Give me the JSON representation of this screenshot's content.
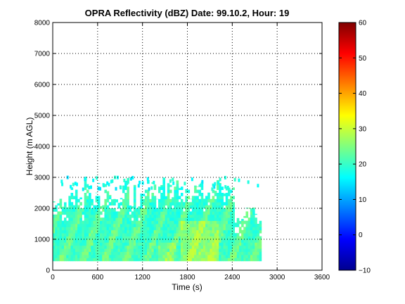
{
  "chart_data": {
    "type": "heatmap",
    "title": "OPRA Reflectivity (dBZ)  Date: 99.10.2, Hour: 19",
    "xlabel": "Time (s)",
    "ylabel": "Height (m AGL)",
    "xlim": [
      0,
      3600
    ],
    "ylim": [
      0,
      8000
    ],
    "xticks": [
      0,
      600,
      1200,
      1800,
      2400,
      3000,
      3600
    ],
    "yticks": [
      0,
      1000,
      2000,
      3000,
      4000,
      5000,
      6000,
      7000,
      8000
    ],
    "grid": true,
    "colorbar": {
      "min": -10,
      "max": 60,
      "ticks": [
        -10,
        0,
        10,
        20,
        30,
        40,
        50,
        60
      ],
      "colormap": "jet"
    },
    "data_extent": {
      "time_start": 0,
      "time_end": 2790,
      "height_base": 300,
      "typical_top": 2900,
      "max_top": 3000,
      "typical_dbz": [
        15,
        24
      ],
      "max_dbz": 30
    }
  }
}
